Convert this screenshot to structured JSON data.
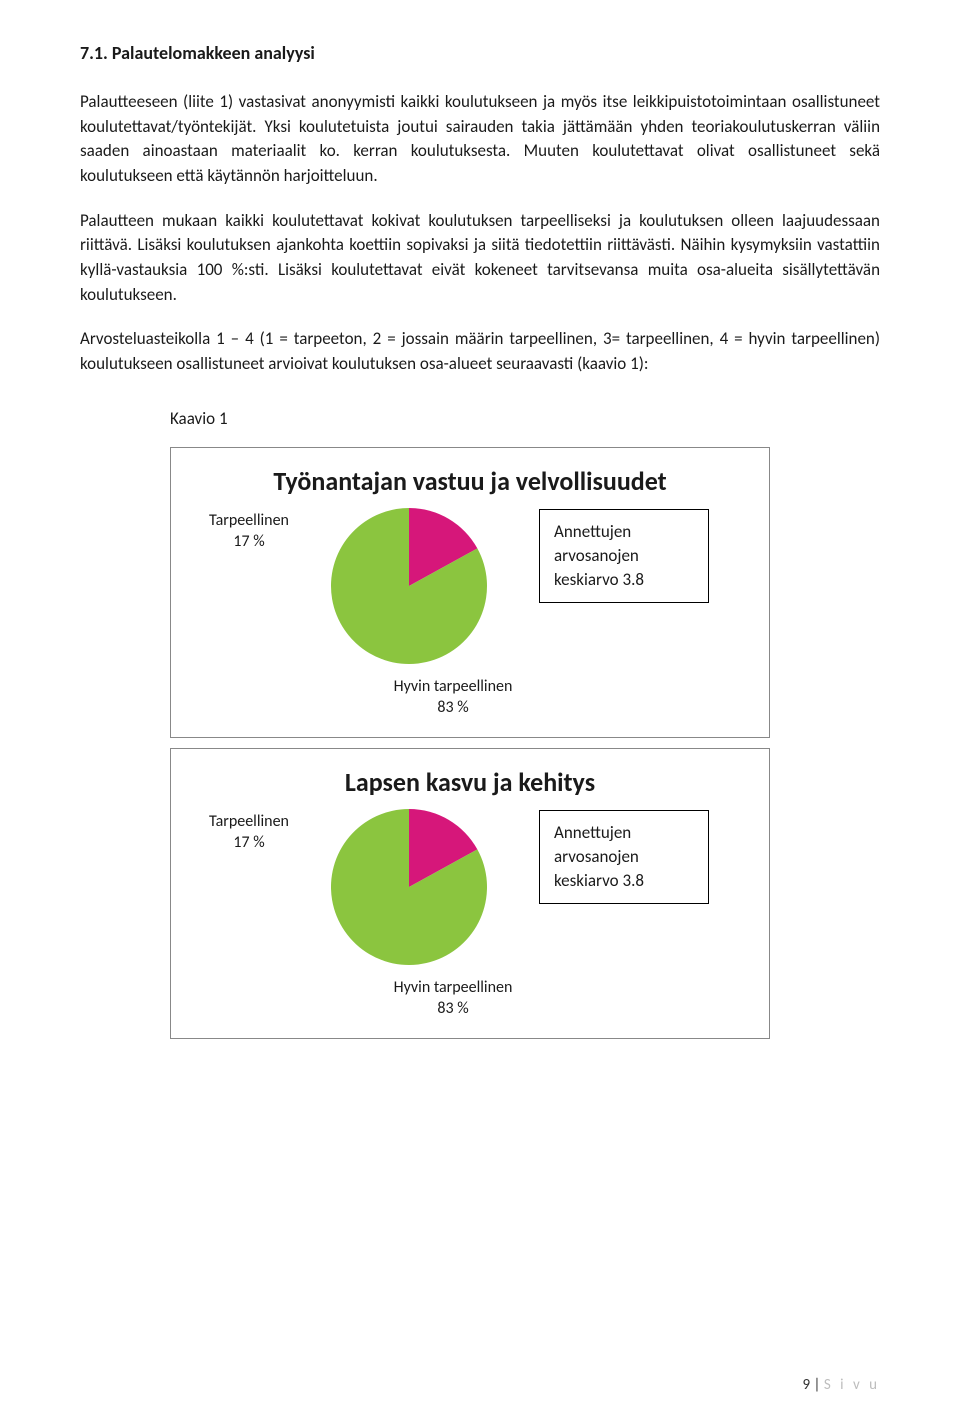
{
  "heading": "7.1. Palautelomakkeen analyysi",
  "paragraphs": {
    "p1": "Palautteeseen (liite 1) vastasivat anonyymisti kaikki koulutukseen ja myös itse leikkipuistotoimintaan osallistuneet koulutettavat/työntekijät. Yksi koulutetuista joutui sairauden takia jättämään yhden teoriakoulutuskerran väliin saaden ainoastaan materiaalit ko. kerran koulutuksesta. Muuten koulutettavat olivat osallistuneet sekä koulutukseen että käytännön harjoitteluun.",
    "p2": "Palautteen mukaan kaikki koulutettavat kokivat koulutuksen tarpeelliseksi ja koulutuksen olleen laajuudessaan riittävä. Lisäksi koulutuksen ajankohta koettiin sopivaksi ja siitä tiedotettiin riittävästi. Näihin kysymyksiin vastattiin  kyllä-vastauksia 100 %:sti. Lisäksi koulutettavat eivät kokeneet tarvitsevansa muita osa-alueita sisällytettävän koulutukseen.",
    "p3": "Arvosteluasteikolla 1 – 4 (1 = tarpeeton, 2 = jossain määrin tarpeellinen, 3= tarpeellinen, 4 = hyvin tarpeellinen) koulutukseen osallistuneet arvioivat koulutuksen osa-alueet seuraavasti (kaavio 1):"
  },
  "caption": "Kaavio 1",
  "charts": [
    {
      "type": "pie",
      "title": "Työnantajan vastuu ja velvollisuudet",
      "slices": [
        {
          "label": "Tarpeellinen",
          "percent_text": "17 %",
          "value": 17,
          "color": "#d6177a"
        },
        {
          "label": "Hyvin tarpeellinen",
          "percent_text": "83 %",
          "value": 83,
          "color": "#8bc53f"
        }
      ],
      "legend": "Annettujen arvosanojen keskiarvo 3.8",
      "radius": 78,
      "start_angle_deg": -90,
      "background_color": "#ffffff",
      "border_color": "#888888",
      "label_fontsize": 16,
      "title_fontsize": 26
    },
    {
      "type": "pie",
      "title": "Lapsen kasvu ja kehitys",
      "slices": [
        {
          "label": "Tarpeellinen",
          "percent_text": "17 %",
          "value": 17,
          "color": "#d6177a"
        },
        {
          "label": "Hyvin tarpeellinen",
          "percent_text": "83 %",
          "value": 83,
          "color": "#8bc53f"
        }
      ],
      "legend": "Annettujen arvosanojen keskiarvo 3.8",
      "radius": 78,
      "start_angle_deg": -90,
      "background_color": "#ffffff",
      "border_color": "#888888",
      "label_fontsize": 16,
      "title_fontsize": 26
    }
  ],
  "footer": {
    "page_number": "9",
    "page_word": "S i v u",
    "separator": " | "
  }
}
